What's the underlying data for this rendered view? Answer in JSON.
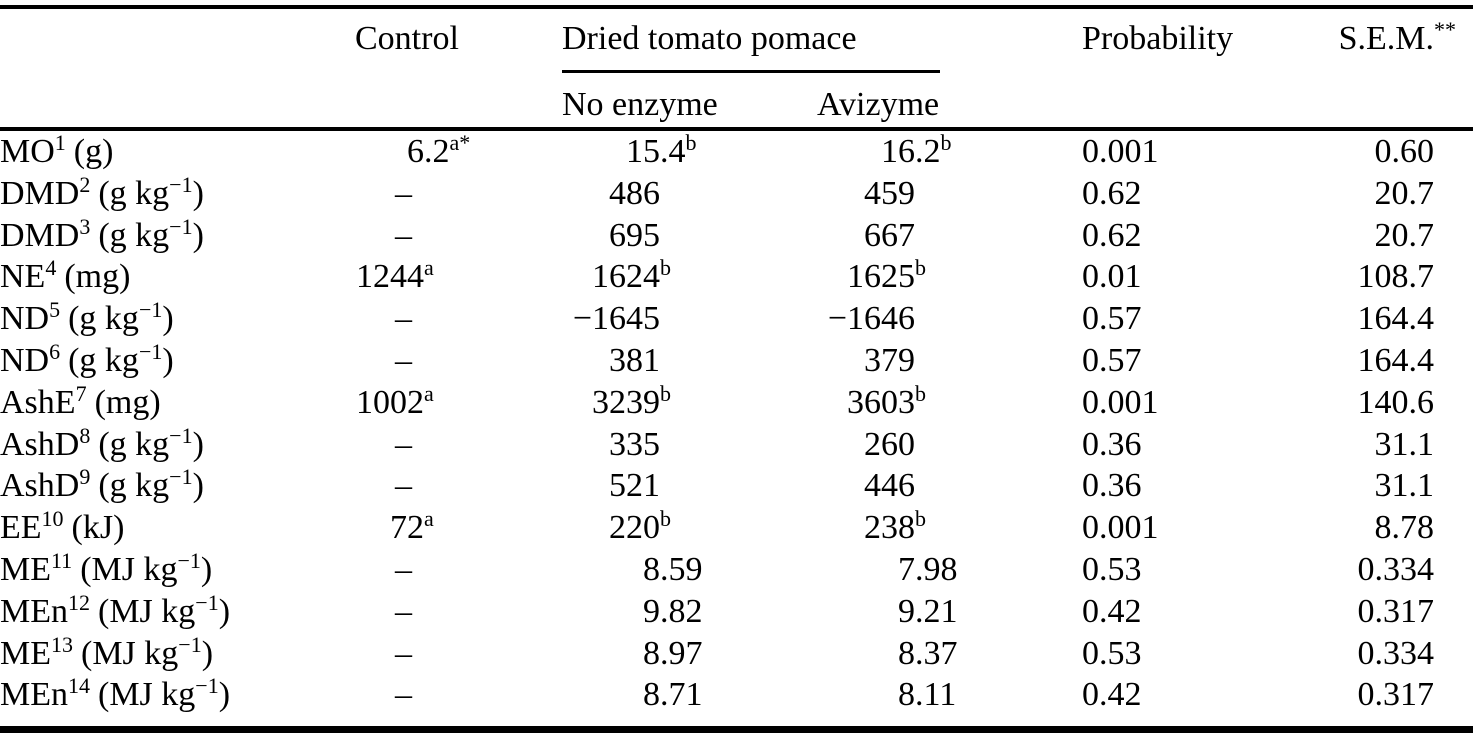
{
  "table": {
    "header": {
      "control": "Control",
      "group": "Dried tomato pomace",
      "no_enzyme": "No enzyme",
      "avizyme": "Avizyme",
      "probability": "Probability",
      "sem": "S.E.M.",
      "sem_sup": "**"
    },
    "rows": [
      {
        "label": {
          "name": "MO",
          "sup": "1",
          "unit_pre": "(g)",
          "unit_sup": "",
          "unit_post": ""
        },
        "control": {
          "int": "6",
          "dec": ".2",
          "sup": "a*"
        },
        "no_enzyme": {
          "int": "15",
          "dec": ".4",
          "sup": "b"
        },
        "avizyme": {
          "int": "16",
          "dec": ".2",
          "sup": "b"
        },
        "probability": "0.001",
        "sem": "0.60"
      },
      {
        "label": {
          "name": "DMD",
          "sup": "2",
          "unit_pre": "(g kg",
          "unit_sup": "−1",
          "unit_post": ")"
        },
        "control": {
          "int": "–",
          "dec": "",
          "sup": ""
        },
        "no_enzyme": {
          "int": "486",
          "dec": "",
          "sup": ""
        },
        "avizyme": {
          "int": "459",
          "dec": "",
          "sup": ""
        },
        "probability": "0.62",
        "sem": "20.7"
      },
      {
        "label": {
          "name": "DMD",
          "sup": "3",
          "unit_pre": "(g kg",
          "unit_sup": "−1",
          "unit_post": ")"
        },
        "control": {
          "int": "–",
          "dec": "",
          "sup": ""
        },
        "no_enzyme": {
          "int": "695",
          "dec": "",
          "sup": ""
        },
        "avizyme": {
          "int": "667",
          "dec": "",
          "sup": ""
        },
        "probability": "0.62",
        "sem": "20.7"
      },
      {
        "label": {
          "name": "NE",
          "sup": "4",
          "unit_pre": "(mg)",
          "unit_sup": "",
          "unit_post": ""
        },
        "control": {
          "int": "1244",
          "dec": "",
          "sup": "a"
        },
        "no_enzyme": {
          "int": "1624",
          "dec": "",
          "sup": "b"
        },
        "avizyme": {
          "int": "1625",
          "dec": "",
          "sup": "b"
        },
        "probability": "0.01",
        "sem": "108.7"
      },
      {
        "label": {
          "name": "ND",
          "sup": "5",
          "unit_pre": "(g kg",
          "unit_sup": "−1",
          "unit_post": ")"
        },
        "control": {
          "int": "–",
          "dec": "",
          "sup": ""
        },
        "no_enzyme": {
          "int": "−1645",
          "dec": "",
          "sup": ""
        },
        "avizyme": {
          "int": "−1646",
          "dec": "",
          "sup": ""
        },
        "probability": "0.57",
        "sem": "164.4"
      },
      {
        "label": {
          "name": "ND",
          "sup": "6",
          "unit_pre": "(g kg",
          "unit_sup": "−1",
          "unit_post": ")"
        },
        "control": {
          "int": "–",
          "dec": "",
          "sup": ""
        },
        "no_enzyme": {
          "int": "381",
          "dec": "",
          "sup": ""
        },
        "avizyme": {
          "int": "379",
          "dec": "",
          "sup": ""
        },
        "probability": "0.57",
        "sem": "164.4"
      },
      {
        "label": {
          "name": "AshE",
          "sup": "7",
          "unit_pre": "(mg)",
          "unit_sup": "",
          "unit_post": ""
        },
        "control": {
          "int": "1002",
          "dec": "",
          "sup": "a"
        },
        "no_enzyme": {
          "int": "3239",
          "dec": "",
          "sup": "b"
        },
        "avizyme": {
          "int": "3603",
          "dec": "",
          "sup": "b"
        },
        "probability": "0.001",
        "sem": "140.6"
      },
      {
        "label": {
          "name": "AshD",
          "sup": "8",
          "unit_pre": "(g kg",
          "unit_sup": "−1",
          "unit_post": ")"
        },
        "control": {
          "int": "–",
          "dec": "",
          "sup": ""
        },
        "no_enzyme": {
          "int": "335",
          "dec": "",
          "sup": ""
        },
        "avizyme": {
          "int": "260",
          "dec": "",
          "sup": ""
        },
        "probability": "0.36",
        "sem": "31.1"
      },
      {
        "label": {
          "name": "AshD",
          "sup": "9",
          "unit_pre": "(g kg",
          "unit_sup": "−1",
          "unit_post": ")"
        },
        "control": {
          "int": "–",
          "dec": "",
          "sup": ""
        },
        "no_enzyme": {
          "int": "521",
          "dec": "",
          "sup": ""
        },
        "avizyme": {
          "int": "446",
          "dec": "",
          "sup": ""
        },
        "probability": "0.36",
        "sem": "31.1"
      },
      {
        "label": {
          "name": "EE",
          "sup": "10",
          "unit_pre": "(kJ)",
          "unit_sup": "",
          "unit_post": ""
        },
        "control": {
          "int": "72",
          "dec": "",
          "sup": "a"
        },
        "no_enzyme": {
          "int": "220",
          "dec": "",
          "sup": "b"
        },
        "avizyme": {
          "int": "238",
          "dec": "",
          "sup": "b"
        },
        "probability": "0.001",
        "sem": "8.78"
      },
      {
        "label": {
          "name": "ME",
          "sup": "11",
          "unit_pre": "(MJ kg",
          "unit_sup": "−1",
          "unit_post": ")"
        },
        "control": {
          "int": "–",
          "dec": "",
          "sup": ""
        },
        "no_enzyme": {
          "int": "8",
          "dec": ".59",
          "sup": ""
        },
        "avizyme": {
          "int": "7",
          "dec": ".98",
          "sup": ""
        },
        "probability": "0.53",
        "sem": "0.334"
      },
      {
        "label": {
          "name": "MEn",
          "sup": "12",
          "unit_pre": "(MJ kg",
          "unit_sup": "−1",
          "unit_post": ")"
        },
        "control": {
          "int": "–",
          "dec": "",
          "sup": ""
        },
        "no_enzyme": {
          "int": "9",
          "dec": ".82",
          "sup": ""
        },
        "avizyme": {
          "int": "9",
          "dec": ".21",
          "sup": ""
        },
        "probability": "0.42",
        "sem": "0.317"
      },
      {
        "label": {
          "name": "ME",
          "sup": "13",
          "unit_pre": "(MJ kg",
          "unit_sup": "−1",
          "unit_post": ")"
        },
        "control": {
          "int": "–",
          "dec": "",
          "sup": ""
        },
        "no_enzyme": {
          "int": "8",
          "dec": ".97",
          "sup": ""
        },
        "avizyme": {
          "int": "8",
          "dec": ".37",
          "sup": ""
        },
        "probability": "0.53",
        "sem": "0.334"
      },
      {
        "label": {
          "name": "MEn",
          "sup": "14",
          "unit_pre": "(MJ kg",
          "unit_sup": "−1",
          "unit_post": ")"
        },
        "control": {
          "int": "–",
          "dec": "",
          "sup": ""
        },
        "no_enzyme": {
          "int": "8",
          "dec": ".71",
          "sup": ""
        },
        "avizyme": {
          "int": "8",
          "dec": ".11",
          "sup": ""
        },
        "probability": "0.42",
        "sem": "0.317"
      }
    ]
  }
}
